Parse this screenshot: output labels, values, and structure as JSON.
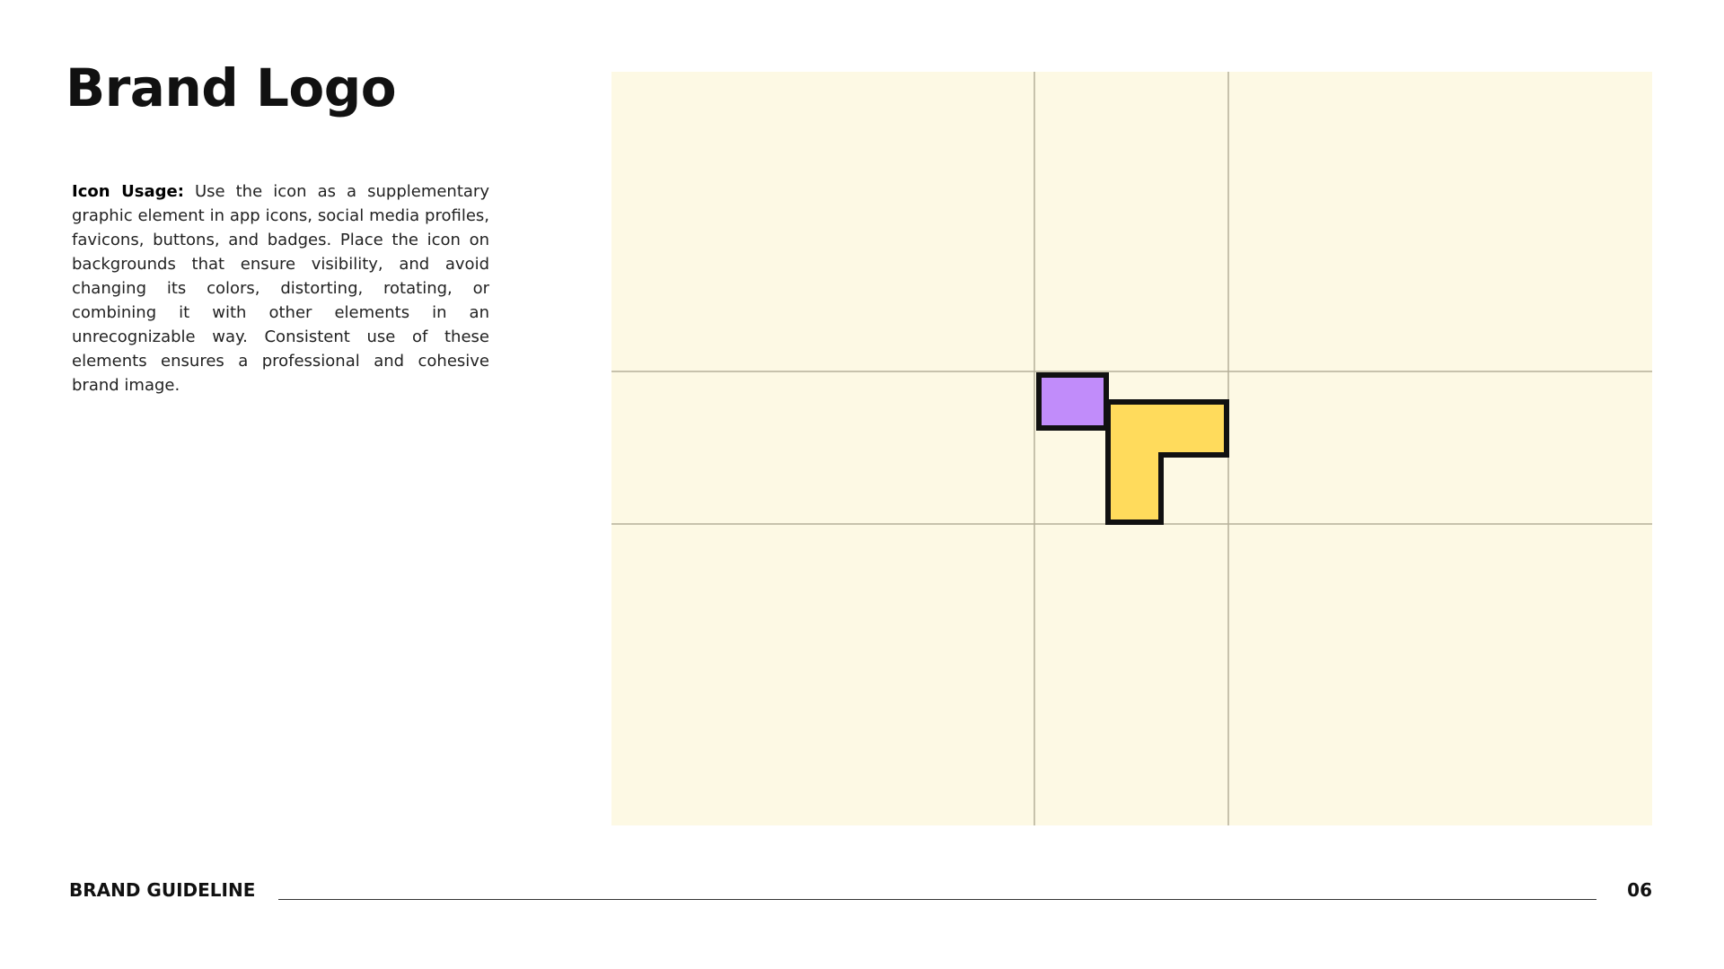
{
  "header": {
    "title": "Brand Logo"
  },
  "body": {
    "label": "Icon Usage:",
    "text": "Use the icon as a supplementary graphic element in app icons, social media profiles, favicons, buttons, and badges. Place the icon on backgrounds that ensure visibility, and avoid changing its colors, distorting, rotating, or combining it with other elements in an unrecognizable way. Consistent use of these elements ensures a professional and cohesive brand image."
  },
  "footer": {
    "label": "BRAND GUIDELINE",
    "page": "06"
  }
}
